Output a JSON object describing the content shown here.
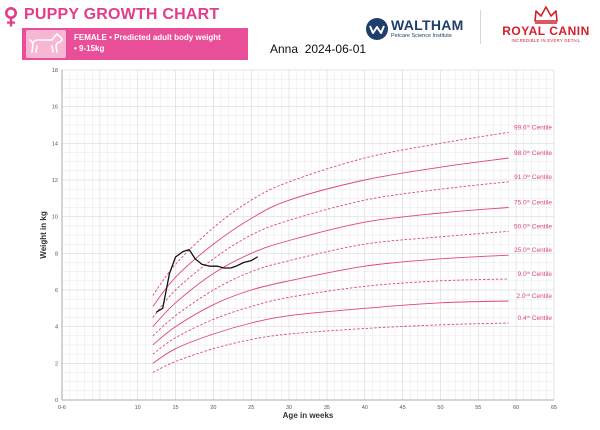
{
  "header": {
    "title": "PUPPY GROWTH CHART",
    "banner_line1": "FEMALE • Predicted adult body weight",
    "banner_line2": "• 9-15kg",
    "caption_name": "Anna",
    "caption_date": "2024-06-01",
    "waltham_name": "WALTHAM",
    "waltham_sub": "Petcare Science Institute",
    "royal_canin_name": "ROYAL CANIN",
    "royal_canin_sub": "INCREDIBLE IN EVERY DETAIL",
    "icons": [
      "female-symbol-icon",
      "puppy-icon",
      "waltham-logo-icon",
      "crown-icon"
    ]
  },
  "colors": {
    "accent": "#e33c8b",
    "banner": "#e94f98",
    "centile": "#e0457f",
    "puppy_line": "#111111",
    "grid": "#dcdcdc"
  },
  "chart_data": {
    "type": "line",
    "xlabel": "Age in weeks",
    "ylabel": "Weight in kg",
    "xlim": [
      0,
      65
    ],
    "ylim": [
      0,
      18
    ],
    "x_ticks": [
      "0-6",
      "10",
      "15",
      "20",
      "25",
      "30",
      "35",
      "40",
      "45",
      "50",
      "55",
      "60",
      "65"
    ],
    "y_ticks": [
      "0",
      "2",
      "4",
      "6",
      "8",
      "10",
      "12",
      "14",
      "16",
      "18"
    ],
    "grid": true,
    "centile_x": [
      12,
      15,
      20,
      25,
      30,
      40,
      50,
      59
    ],
    "series": [
      {
        "name": "99.6th Centile",
        "label_base": "99.6",
        "label_sup": "th",
        "label_rest": " Centile",
        "style": "dashed",
        "values": [
          5.7,
          7.4,
          9.4,
          10.9,
          11.9,
          13.2,
          14.0,
          14.6
        ]
      },
      {
        "name": "98.0th Centile",
        "label_base": "98.0",
        "label_sup": "th",
        "label_rest": " Centile",
        "style": "solid",
        "values": [
          5.1,
          6.7,
          8.5,
          9.9,
          10.9,
          12.0,
          12.7,
          13.2
        ]
      },
      {
        "name": "91.0st Centile",
        "label_base": "91.0",
        "label_sup": "st",
        "label_rest": " Centile",
        "style": "dashed",
        "values": [
          4.5,
          6.0,
          7.7,
          9.0,
          9.8,
          10.9,
          11.5,
          11.9
        ]
      },
      {
        "name": "75.0th Centile",
        "label_base": "75.0",
        "label_sup": "th",
        "label_rest": " Centile",
        "style": "solid",
        "values": [
          4.0,
          5.3,
          6.9,
          8.0,
          8.7,
          9.7,
          10.2,
          10.5
        ]
      },
      {
        "name": "50.0th Centile",
        "label_base": "50.0",
        "label_sup": "th",
        "label_rest": " Centile",
        "style": "dashed",
        "values": [
          3.5,
          4.6,
          6.0,
          7.0,
          7.6,
          8.5,
          8.9,
          9.2
        ]
      },
      {
        "name": "25.0th Centile",
        "label_base": "25.0",
        "label_sup": "th",
        "label_rest": " Centile",
        "style": "solid",
        "values": [
          3.0,
          4.0,
          5.2,
          6.0,
          6.5,
          7.3,
          7.7,
          7.9
        ]
      },
      {
        "name": "9.0th Centile",
        "label_base": "9.0",
        "label_sup": "th",
        "label_rest": " Centile",
        "style": "dashed",
        "values": [
          2.5,
          3.4,
          4.4,
          5.1,
          5.6,
          6.2,
          6.5,
          6.6
        ]
      },
      {
        "name": "2.0nd Centile",
        "label_base": "2.0",
        "label_sup": "nd",
        "label_rest": " Centile",
        "style": "solid",
        "values": [
          2.0,
          2.8,
          3.6,
          4.2,
          4.6,
          5.0,
          5.3,
          5.4
        ]
      },
      {
        "name": "0.4th Centile",
        "label_base": "0.4",
        "label_sup": "th",
        "label_rest": " Centile",
        "style": "dashed",
        "values": [
          1.5,
          2.1,
          2.8,
          3.3,
          3.6,
          3.9,
          4.1,
          4.2
        ]
      }
    ],
    "puppy_weights": {
      "x": [
        12.5,
        13.3,
        14.2,
        15.0,
        16.0,
        16.8,
        17.6,
        18.5,
        19.5,
        20.5,
        21.4,
        22.3,
        23.0,
        24.0,
        25.0,
        25.8
      ],
      "y": [
        4.8,
        5.0,
        6.9,
        7.8,
        8.1,
        8.2,
        7.7,
        7.4,
        7.3,
        7.3,
        7.2,
        7.2,
        7.3,
        7.5,
        7.6,
        7.8
      ]
    }
  }
}
